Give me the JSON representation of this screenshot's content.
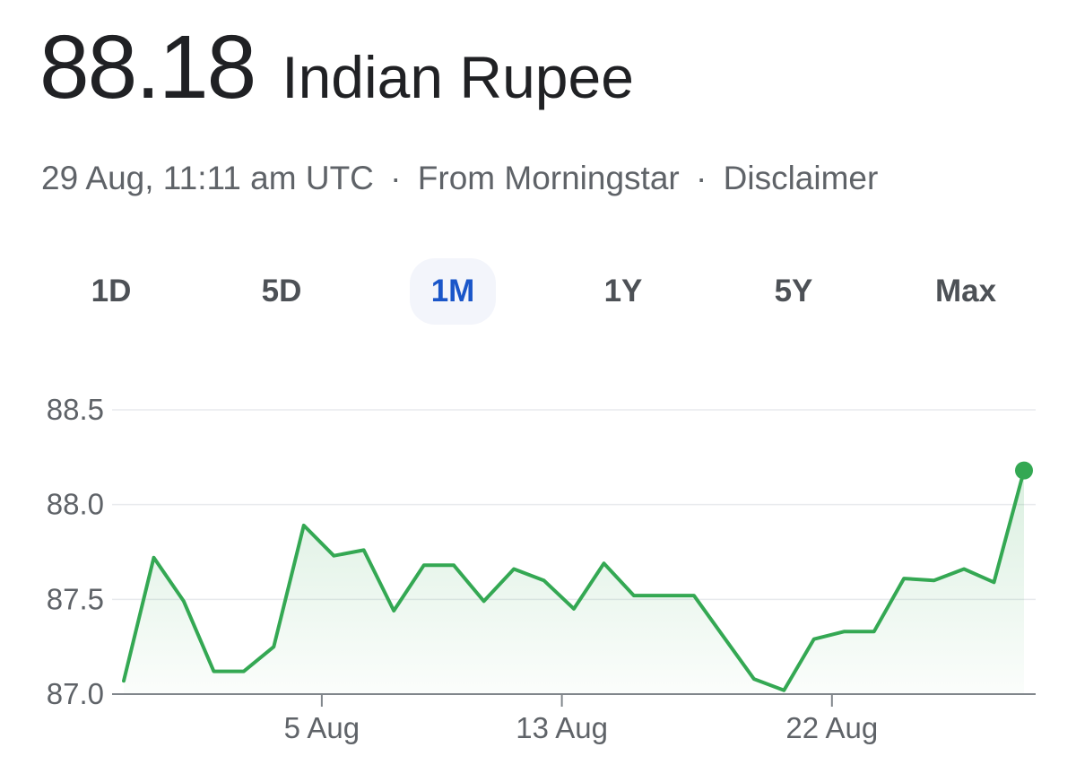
{
  "header": {
    "price": "88.18",
    "currency": "Indian Rupee"
  },
  "meta": {
    "timestamp": "29 Aug, 11:11 am UTC",
    "separator": "·",
    "source": "From Morningstar",
    "disclaimer": "Disclaimer"
  },
  "tabs": [
    {
      "label": "1D",
      "active": false
    },
    {
      "label": "5D",
      "active": false
    },
    {
      "label": "1M",
      "active": true
    },
    {
      "label": "1Y",
      "active": false
    },
    {
      "label": "5Y",
      "active": false
    },
    {
      "label": "Max",
      "active": false
    }
  ],
  "colors": {
    "line": "#34a853",
    "active_tab": "#1a56c9",
    "grid": "#e8eaed",
    "axis": "#80868b"
  },
  "chart_data": {
    "type": "area",
    "x_ticks": [
      {
        "label": "5 Aug",
        "index": 6.6
      },
      {
        "label": "13 Aug",
        "index": 14.6
      },
      {
        "label": "22 Aug",
        "index": 23.6
      }
    ],
    "y_ticks": [
      {
        "label": "88.5",
        "value": 88.5
      },
      {
        "label": "88.0",
        "value": 88.0
      },
      {
        "label": "87.5",
        "value": 87.5
      },
      {
        "label": "87.0",
        "value": 87.0
      }
    ],
    "ylim": [
      87.0,
      88.5
    ],
    "grid": true,
    "series": [
      {
        "values": [
          87.07,
          87.72,
          87.49,
          87.12,
          87.12,
          87.25,
          87.89,
          87.73,
          87.76,
          87.44,
          87.68,
          87.68,
          87.49,
          87.66,
          87.6,
          87.45,
          87.69,
          87.52,
          87.52,
          87.52,
          87.3,
          87.08,
          87.02,
          87.29,
          87.33,
          87.33,
          87.61,
          87.6,
          87.66,
          87.59,
          88.18
        ]
      }
    ]
  }
}
